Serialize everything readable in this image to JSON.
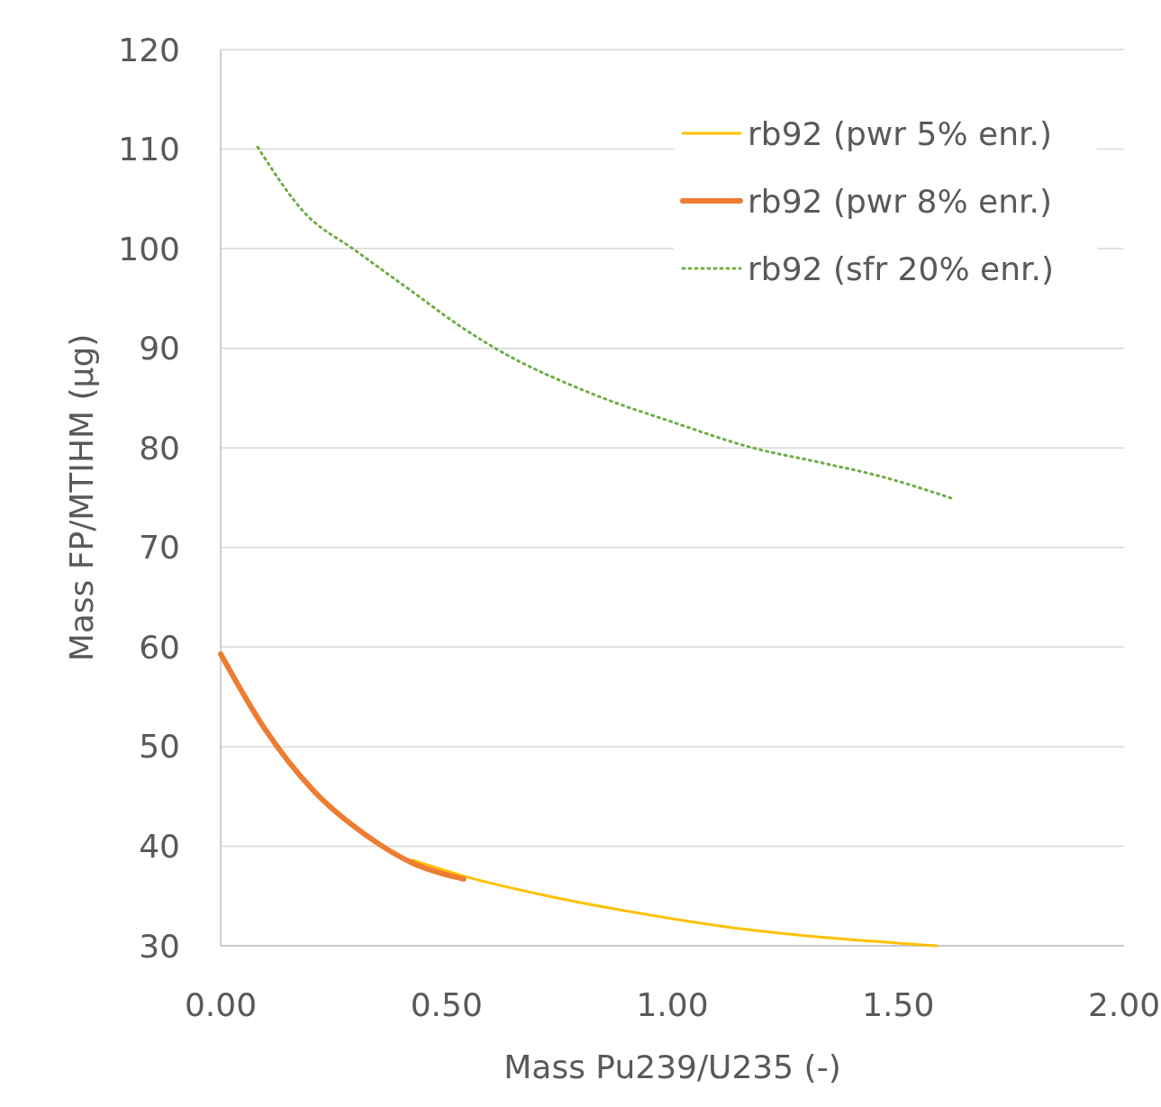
{
  "chart_data": {
    "type": "line",
    "xlabel": "Mass Pu239/U235 (-)",
    "ylabel": "Mass FP/MTIHM (µg)",
    "xlim": [
      0,
      2
    ],
    "xticks": [
      {
        "value": 0,
        "label": "0.00"
      },
      {
        "value": 0.5,
        "label": "0.50"
      },
      {
        "value": 1,
        "label": "1.00"
      },
      {
        "value": 1.5,
        "label": "1.50"
      },
      {
        "value": 2,
        "label": "2.00"
      }
    ],
    "ylim": [
      30,
      120
    ],
    "yticks": [
      30,
      40,
      50,
      60,
      70,
      80,
      90,
      100,
      110,
      120
    ],
    "grid": "y",
    "legend": "top right",
    "series": [
      {
        "name": "rb92 (pwr 5% enr.)",
        "color": "#ffc000",
        "line_style": "solid",
        "x": [
          0.425,
          0.538,
          0.724,
          0.923,
          1.12,
          1.32,
          1.52,
          1.585
        ],
        "values": [
          38.6,
          37.0,
          35.0,
          33.3,
          31.9,
          30.9,
          30.2,
          30.0
        ]
      },
      {
        "name": "rb92 (pwr 8% enr.)",
        "color": "#ed7d31",
        "line_style": "solid",
        "x": [
          0,
          0.096,
          0.205,
          0.325,
          0.425,
          0.538
        ],
        "values": [
          59.3,
          51.9,
          45.6,
          41.0,
          38.3,
          36.7
        ]
      },
      {
        "name": "rb92 (sfr 20% enr.)",
        "color": "#70ad47",
        "line_style": "dotted",
        "x": [
          0.082,
          0.186,
          0.299,
          0.43,
          0.524,
          0.608,
          0.824,
          1.0,
          1.178,
          1.32,
          1.456,
          1.621
        ],
        "values": [
          110.2,
          103.6,
          99.8,
          95.5,
          92.4,
          90.0,
          85.4,
          82.6,
          80.0,
          78.6,
          77.2,
          74.9
        ]
      }
    ]
  }
}
